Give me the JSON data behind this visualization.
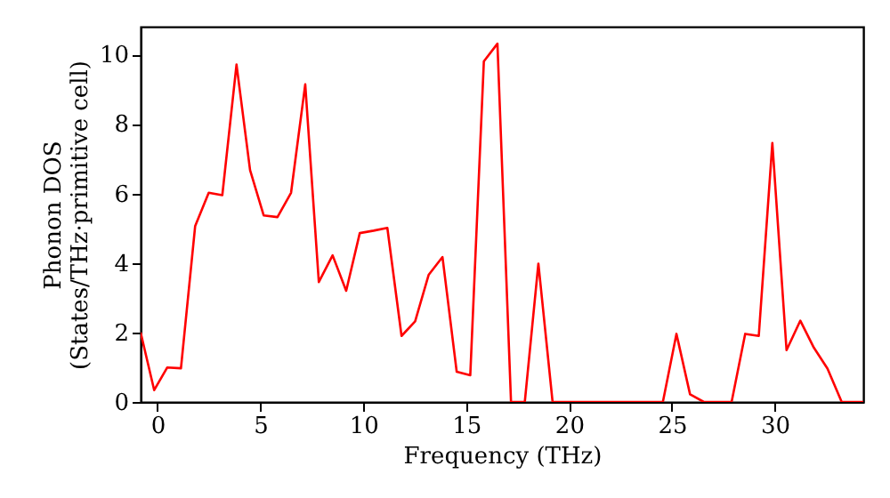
{
  "chart_data": {
    "type": "line",
    "xlabel": "Frequency (THz)",
    "ylabel": "Phonon DOS\n(States/THz·primitive cell)",
    "x": [
      -0.82,
      -0.16,
      0.47,
      1.14,
      1.83,
      2.49,
      3.15,
      3.84,
      4.5,
      5.16,
      5.83,
      6.49,
      7.18,
      7.84,
      8.51,
      9.17,
      9.83,
      10.5,
      11.17,
      11.86,
      12.52,
      13.18,
      13.85,
      14.54,
      15.2,
      15.86,
      16.52,
      17.18,
      17.85,
      18.51,
      19.2,
      24.56,
      25.22,
      25.88,
      26.55,
      27.9,
      28.56,
      29.22,
      29.88,
      30.57,
      31.24,
      31.9,
      32.56,
      33.25,
      34.3
    ],
    "series": [
      {
        "color": "#ff0000",
        "values": [
          2.0,
          0.34,
          0.99,
          0.97,
          5.06,
          6.02,
          5.95,
          9.71,
          6.67,
          5.37,
          5.32,
          6.02,
          9.14,
          3.45,
          4.22,
          3.2,
          4.86,
          4.93,
          5.01,
          1.9,
          2.32,
          3.66,
          4.17,
          0.87,
          0.77,
          9.8,
          10.31,
          0,
          0,
          3.98,
          0,
          0,
          1.96,
          0.22,
          0,
          0,
          1.96,
          1.9,
          7.45,
          1.49,
          2.34,
          1.56,
          0.96,
          0,
          0
        ]
      }
    ],
    "xlim": [
      -0.82,
      34.3
    ],
    "ylim": [
      0,
      10.8
    ],
    "xticks": [
      0,
      5,
      10,
      15,
      20,
      25,
      30
    ],
    "yticks": [
      0,
      2,
      4,
      6,
      8,
      10
    ],
    "grid": false,
    "marker": "none",
    "line_style": "solid"
  }
}
